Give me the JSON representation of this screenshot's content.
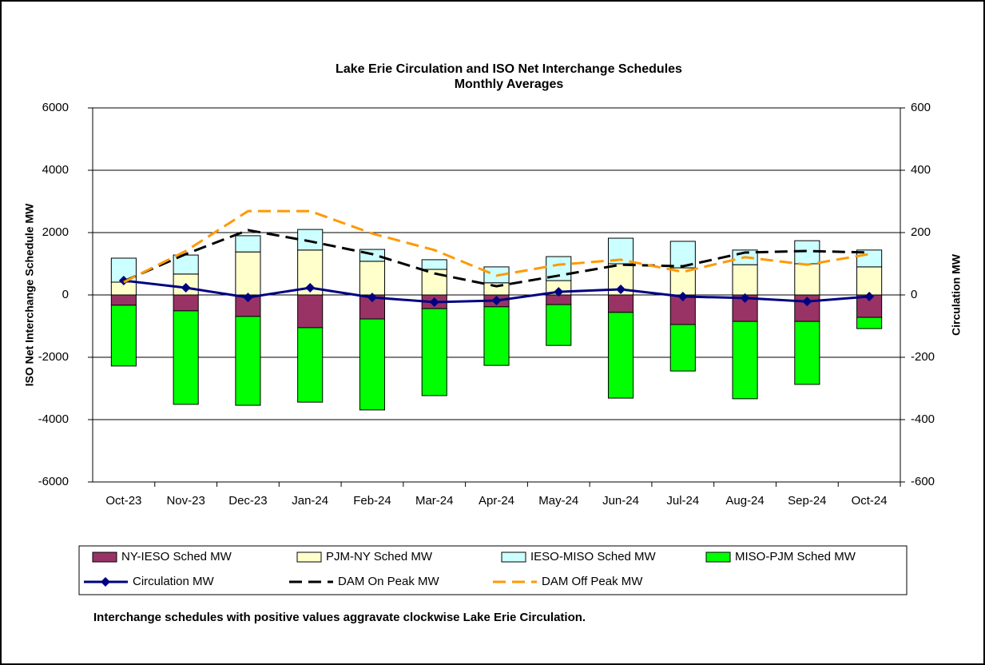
{
  "chart_data": {
    "type": "bar",
    "title": "Lake Erie Circulation and ISO Net Interchange Schedules",
    "subtitle": "Monthly Averages",
    "y_label": "ISO Net Interchange Schedule MW",
    "y2_label": "Circulation MW",
    "footnote": "Interchange schedules with positive values aggravate clockwise Lake Erie Circulation.",
    "categories": [
      "Oct-23",
      "Nov-23",
      "Dec-23",
      "Jan-24",
      "Feb-24",
      "Mar-24",
      "Apr-24",
      "May-24",
      "Jun-24",
      "Jul-24",
      "Aug-24",
      "Sep-24",
      "Oct-24"
    ],
    "ylim": [
      -6000,
      6000
    ],
    "yticks": [
      -6000,
      -4000,
      -2000,
      0,
      2000,
      4000,
      6000
    ],
    "y2lim": [
      -600,
      600
    ],
    "y2ticks": [
      -600,
      -400,
      -200,
      0,
      200,
      400,
      600
    ],
    "grid": true,
    "stacked": true,
    "series": [
      {
        "name": "NY-IESO Sched MW",
        "type": "bar",
        "color": "#993366",
        "values": [
          -330,
          -510,
          -690,
          -1050,
          -770,
          -440,
          -380,
          -310,
          -560,
          -950,
          -850,
          -850,
          -720
        ]
      },
      {
        "name": "PJM-NY Sched MW",
        "type": "bar",
        "color": "#ffffcc",
        "values": [
          410,
          670,
          1380,
          1440,
          1080,
          820,
          390,
          460,
          1000,
          870,
          970,
          1000,
          900
        ]
      },
      {
        "name": "IESO-MISO Sched MW",
        "type": "bar",
        "color": "#ccffff",
        "values": [
          770,
          610,
          520,
          660,
          380,
          310,
          510,
          770,
          820,
          850,
          470,
          740,
          540
        ]
      },
      {
        "name": "MISO-PJM Sched MW",
        "type": "bar",
        "color": "#00ff00",
        "values": [
          -1950,
          -3000,
          -2850,
          -2390,
          -2920,
          -2790,
          -1880,
          -1310,
          -2750,
          -1490,
          -2480,
          -2020,
          -360
        ]
      },
      {
        "name": "Circulation MW",
        "type": "line",
        "axis": "y2",
        "color": "#000080",
        "dashed": false,
        "markers": true,
        "values": [
          46,
          23,
          -8,
          23,
          -8,
          -23,
          -18,
          10,
          18,
          -5,
          -10,
          -21,
          -5
        ]
      },
      {
        "name": "DAM On Peak MW",
        "type": "line",
        "axis": "y2",
        "color": "#000000",
        "dashed": true,
        "markers": false,
        "values": [
          44,
          131,
          208,
          172,
          131,
          69,
          28,
          62,
          97,
          92,
          136,
          141,
          136
        ]
      },
      {
        "name": "DAM Off Peak MW",
        "type": "line",
        "axis": "y2",
        "color": "#ff9900",
        "dashed": true,
        "markers": false,
        "values": [
          41,
          141,
          269,
          269,
          197,
          144,
          62,
          97,
          113,
          74,
          121,
          97,
          131
        ]
      }
    ]
  }
}
